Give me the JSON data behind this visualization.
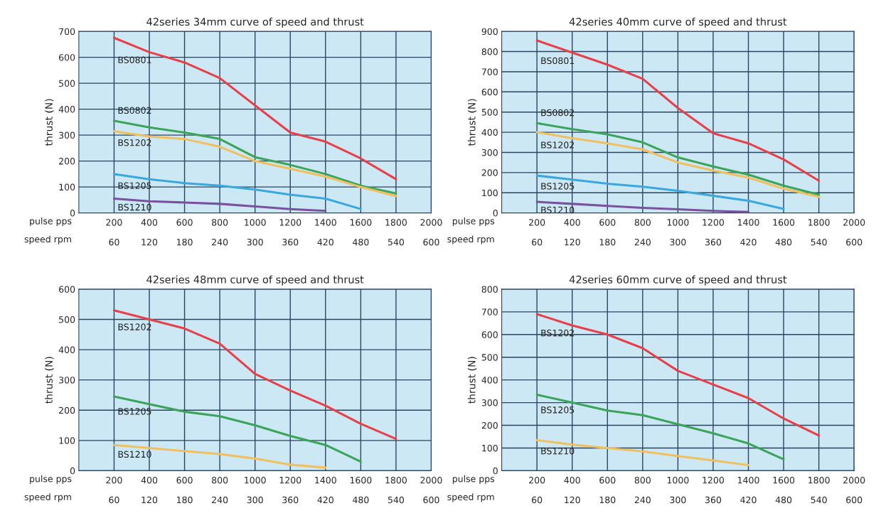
{
  "chart_data": [
    {
      "type": "line",
      "title": "42series 34mm curve of speed and thrust",
      "ylabel": "thrust (N)",
      "xlabel": "pulse pps",
      "x2label": "speed rpm",
      "xlim": [
        0,
        2000
      ],
      "xticks": [
        200,
        400,
        600,
        800,
        1000,
        1200,
        1400,
        1600,
        1800,
        2000
      ],
      "x2lim": [
        0,
        600
      ],
      "x2ticks": [
        60,
        120,
        180,
        240,
        300,
        360,
        420,
        480,
        540,
        600
      ],
      "ylim": [
        0,
        700
      ],
      "yticks": [
        0,
        100,
        200,
        300,
        400,
        500,
        600,
        700
      ],
      "grid": true,
      "legend": false,
      "marker": "none",
      "line_style": "solid",
      "series": [
        {
          "name": "BS0801",
          "color": "#e8404a",
          "x": [
            200,
            400,
            600,
            800,
            1000,
            1200,
            1400,
            1600,
            1800
          ],
          "values": [
            675,
            620,
            580,
            520,
            415,
            310,
            275,
            210,
            130
          ]
        },
        {
          "name": "BS0802",
          "color": "#3aa55a",
          "x": [
            200,
            400,
            600,
            800,
            1000,
            1200,
            1400,
            1600,
            1800
          ],
          "values": [
            355,
            330,
            310,
            285,
            215,
            185,
            150,
            105,
            75
          ]
        },
        {
          "name": "BS1202",
          "color": "#f0c060",
          "x": [
            200,
            400,
            600,
            800,
            1000,
            1200,
            1400,
            1600,
            1800
          ],
          "values": [
            315,
            295,
            285,
            255,
            200,
            170,
            140,
            100,
            65
          ]
        },
        {
          "name": "BS1205",
          "color": "#3aa8e0",
          "x": [
            200,
            400,
            600,
            800,
            1000,
            1200,
            1400,
            1600
          ],
          "values": [
            150,
            130,
            115,
            105,
            90,
            70,
            55,
            15
          ]
        },
        {
          "name": "BS1210",
          "color": "#7a50a0",
          "x": [
            200,
            400,
            600,
            800,
            1000,
            1200,
            1400
          ],
          "values": [
            55,
            45,
            40,
            35,
            25,
            15,
            8
          ]
        }
      ]
    },
    {
      "type": "line",
      "title": "42series 40mm curve of speed and thrust",
      "ylabel": "thrust (N)",
      "xlabel": "pulse pps",
      "x2label": "speed rpm",
      "xlim": [
        0,
        2000
      ],
      "xticks": [
        200,
        400,
        600,
        800,
        1000,
        1200,
        1400,
        1600,
        1800,
        2000
      ],
      "x2lim": [
        0,
        600
      ],
      "x2ticks": [
        60,
        120,
        180,
        240,
        300,
        360,
        420,
        480,
        540,
        600
      ],
      "ylim": [
        0,
        900
      ],
      "yticks": [
        0,
        100,
        200,
        300,
        400,
        500,
        600,
        700,
        800,
        900
      ],
      "grid": true,
      "legend": false,
      "marker": "none",
      "line_style": "solid",
      "series": [
        {
          "name": "BS0801",
          "color": "#e8404a",
          "x": [
            200,
            400,
            600,
            800,
            1000,
            1200,
            1400,
            1600,
            1800
          ],
          "values": [
            855,
            795,
            735,
            665,
            520,
            395,
            345,
            265,
            160
          ]
        },
        {
          "name": "BS0802",
          "color": "#3aa55a",
          "x": [
            200,
            400,
            600,
            800,
            1000,
            1200,
            1400,
            1600,
            1800
          ],
          "values": [
            445,
            415,
            390,
            350,
            275,
            230,
            190,
            135,
            90
          ]
        },
        {
          "name": "BS1202",
          "color": "#f0c060",
          "x": [
            200,
            400,
            600,
            800,
            1000,
            1200,
            1400,
            1600,
            1800
          ],
          "values": [
            400,
            370,
            345,
            315,
            250,
            210,
            175,
            120,
            80
          ]
        },
        {
          "name": "BS1205",
          "color": "#3aa8e0",
          "x": [
            200,
            400,
            600,
            800,
            1000,
            1200,
            1400,
            1600
          ],
          "values": [
            185,
            165,
            145,
            130,
            110,
            85,
            60,
            20
          ]
        },
        {
          "name": "BS1210",
          "color": "#7a50a0",
          "x": [
            200,
            400,
            600,
            800,
            1000,
            1200,
            1400
          ],
          "values": [
            55,
            45,
            35,
            25,
            18,
            10,
            5
          ]
        }
      ]
    },
    {
      "type": "line",
      "title": "42series 48mm curve of speed and thrust",
      "ylabel": "thrust (N)",
      "xlabel": "pulse pps",
      "x2label": "speed rpm",
      "xlim": [
        0,
        2000
      ],
      "xticks": [
        200,
        400,
        600,
        800,
        1000,
        1200,
        1400,
        1600,
        1800,
        2000
      ],
      "x2lim": [
        0,
        600
      ],
      "x2ticks": [
        60,
        120,
        180,
        240,
        300,
        360,
        420,
        480,
        540,
        600
      ],
      "ylim": [
        0,
        600
      ],
      "yticks": [
        0,
        100,
        200,
        300,
        400,
        500,
        600
      ],
      "grid": true,
      "legend": false,
      "marker": "none",
      "line_style": "solid",
      "series": [
        {
          "name": "BS1202",
          "color": "#e8404a",
          "x": [
            200,
            400,
            600,
            800,
            1000,
            1200,
            1400,
            1600,
            1800
          ],
          "values": [
            530,
            500,
            470,
            420,
            320,
            265,
            215,
            155,
            105
          ]
        },
        {
          "name": "BS1205",
          "color": "#3aa55a",
          "x": [
            200,
            400,
            600,
            800,
            1000,
            1200,
            1400,
            1600
          ],
          "values": [
            245,
            220,
            195,
            180,
            150,
            115,
            85,
            30
          ]
        },
        {
          "name": "BS1210",
          "color": "#f0c060",
          "x": [
            200,
            400,
            600,
            800,
            1000,
            1200,
            1400
          ],
          "values": [
            85,
            75,
            65,
            55,
            40,
            20,
            10
          ]
        }
      ]
    },
    {
      "type": "line",
      "title": "42series 60mm curve of speed and thrust",
      "ylabel": "thrust (N)",
      "xlabel": "pulse pps",
      "x2label": "speed rpm",
      "xlim": [
        0,
        2000
      ],
      "xticks": [
        200,
        400,
        600,
        800,
        1000,
        1200,
        1400,
        1600,
        1800,
        2000
      ],
      "x2lim": [
        0,
        600
      ],
      "x2ticks": [
        60,
        120,
        180,
        240,
        300,
        360,
        420,
        480,
        540,
        600
      ],
      "ylim": [
        0,
        800
      ],
      "yticks": [
        0,
        100,
        200,
        300,
        400,
        500,
        600,
        700,
        800
      ],
      "grid": true,
      "legend": false,
      "marker": "none",
      "line_style": "solid",
      "series": [
        {
          "name": "BS1202",
          "color": "#e8404a",
          "x": [
            200,
            400,
            600,
            800,
            1000,
            1200,
            1400,
            1600,
            1800
          ],
          "values": [
            690,
            640,
            600,
            540,
            440,
            380,
            320,
            230,
            155
          ]
        },
        {
          "name": "BS1205",
          "color": "#3aa55a",
          "x": [
            200,
            400,
            600,
            800,
            1000,
            1200,
            1400,
            1600
          ],
          "values": [
            335,
            300,
            265,
            245,
            205,
            165,
            120,
            50
          ]
        },
        {
          "name": "BS1210",
          "color": "#f0c060",
          "x": [
            200,
            400,
            600,
            800,
            1000,
            1200,
            1400
          ],
          "values": [
            135,
            115,
            100,
            85,
            65,
            45,
            25
          ]
        }
      ]
    }
  ]
}
